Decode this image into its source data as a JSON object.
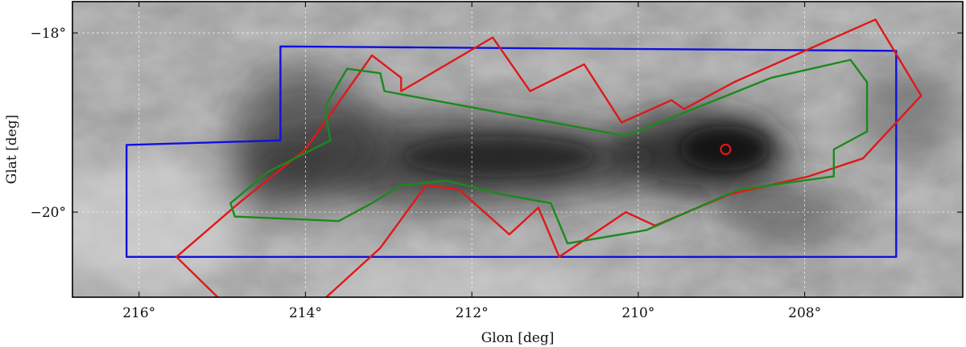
{
  "chart_data": {
    "type": "sky-map",
    "xlabel": "Glon [deg]",
    "ylabel": "Glat [deg]",
    "xlim": [
      216.8,
      206.1
    ],
    "ylim": [
      -20.95,
      -17.65
    ],
    "x_ticks": [
      {
        "value": 216,
        "label": "216°"
      },
      {
        "value": 214,
        "label": "214°"
      },
      {
        "value": 212,
        "label": "212°"
      },
      {
        "value": 210,
        "label": "210°"
      },
      {
        "value": 208,
        "label": "208°"
      }
    ],
    "y_ticks": [
      {
        "value": -18,
        "label": "−18°"
      },
      {
        "value": -20,
        "label": "−20°"
      }
    ],
    "grid": true,
    "background": "grayscale dust column density map",
    "colors": {
      "blue": "#1010e0",
      "red": "#e01818",
      "green": "#1a8a1a",
      "grid": "#ffffff",
      "frame": "#000000"
    },
    "regions": [
      {
        "name": "",
        "color": "blue",
        "closed": true,
        "points": [
          [
            214.3,
            -18.15
          ],
          [
            206.9,
            -18.2
          ],
          [
            206.9,
            -20.5
          ],
          [
            216.15,
            -20.5
          ],
          [
            216.15,
            -19.25
          ],
          [
            214.3,
            -19.2
          ]
        ]
      },
      {
        "name": "",
        "color": "red",
        "closed": false,
        "points": [
          [
            215.0,
            -21.0
          ],
          [
            215.55,
            -20.5
          ],
          [
            214.8,
            -19.9
          ],
          [
            214.0,
            -19.3
          ],
          [
            213.2,
            -18.25
          ],
          [
            212.85,
            -18.5
          ],
          [
            212.85,
            -18.65
          ],
          [
            211.75,
            -18.05
          ],
          [
            211.3,
            -18.65
          ],
          [
            210.65,
            -18.35
          ],
          [
            210.2,
            -19.0
          ],
          [
            209.6,
            -18.75
          ],
          [
            209.45,
            -18.85
          ],
          [
            208.85,
            -18.55
          ],
          [
            207.15,
            -17.85
          ],
          [
            206.6,
            -18.7
          ],
          [
            207.3,
            -19.4
          ],
          [
            207.95,
            -19.6
          ],
          [
            208.9,
            -19.8
          ],
          [
            209.8,
            -20.15
          ],
          [
            210.15,
            -20.0
          ],
          [
            210.95,
            -20.5
          ],
          [
            211.2,
            -19.95
          ],
          [
            211.55,
            -20.25
          ],
          [
            212.15,
            -19.75
          ],
          [
            212.55,
            -19.7
          ],
          [
            213.1,
            -20.4
          ],
          [
            213.75,
            -20.95
          ]
        ]
      },
      {
        "name": "",
        "color": "green",
        "closed": true,
        "points": [
          [
            213.5,
            -18.4
          ],
          [
            213.1,
            -18.45
          ],
          [
            213.05,
            -18.65
          ],
          [
            210.15,
            -19.15
          ],
          [
            208.4,
            -18.5
          ],
          [
            207.45,
            -18.3
          ],
          [
            207.25,
            -18.55
          ],
          [
            207.25,
            -19.1
          ],
          [
            207.65,
            -19.3
          ],
          [
            207.65,
            -19.6
          ],
          [
            208.8,
            -19.75
          ],
          [
            209.9,
            -20.2
          ],
          [
            210.85,
            -20.35
          ],
          [
            211.05,
            -19.9
          ],
          [
            211.65,
            -19.8
          ],
          [
            212.3,
            -19.65
          ],
          [
            212.85,
            -19.7
          ],
          [
            213.2,
            -19.9
          ],
          [
            213.6,
            -20.1
          ],
          [
            214.85,
            -20.05
          ],
          [
            214.9,
            -19.9
          ],
          [
            214.45,
            -19.55
          ],
          [
            213.7,
            -19.2
          ],
          [
            213.75,
            -18.95
          ],
          [
            213.75,
            -18.8
          ]
        ]
      }
    ],
    "markers": [
      {
        "shape": "circle",
        "color": "red",
        "x": 208.95,
        "y": -19.3
      }
    ]
  }
}
